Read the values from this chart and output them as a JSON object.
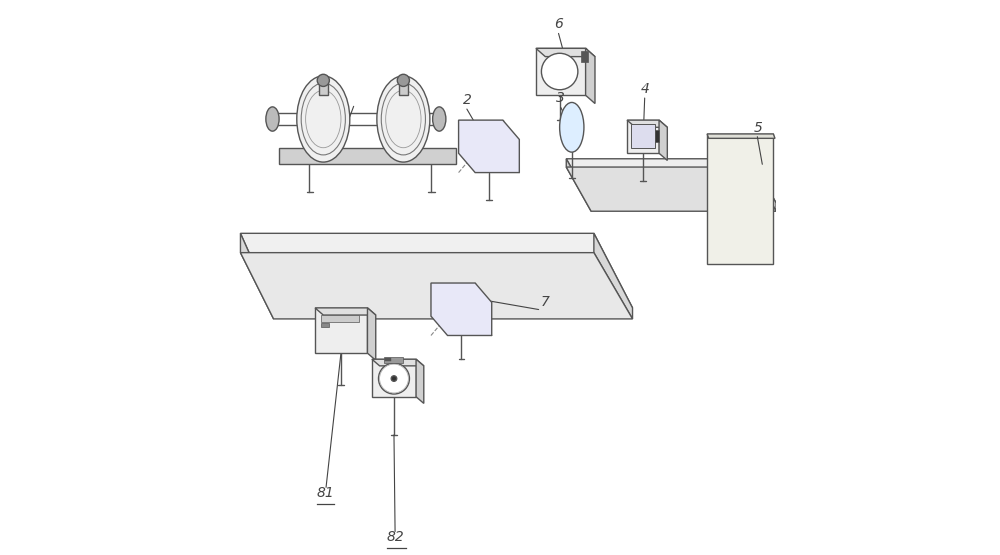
{
  "bg_color": "#ffffff",
  "line_color": "#555555",
  "line_color2": "#888888",
  "line_width": 1.0
}
